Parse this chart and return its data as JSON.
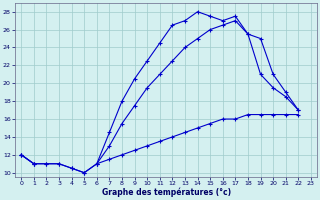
{
  "title": "Graphe des températures (°c)",
  "background_color": "#d4f0f0",
  "grid_color": "#a0cccc",
  "line_color": "#0000cc",
  "hours": [
    0,
    1,
    2,
    3,
    4,
    5,
    6,
    7,
    8,
    9,
    10,
    11,
    12,
    13,
    14,
    15,
    16,
    17,
    18,
    19,
    20,
    21,
    22,
    23
  ],
  "line1": [
    12,
    11,
    11,
    11,
    10.5,
    10,
    11,
    14.5,
    18,
    20.5,
    22.5,
    24.5,
    26.5,
    27,
    28,
    27.5,
    27,
    27.5,
    25.5,
    25,
    21,
    19,
    17,
    null
  ],
  "line2": [
    12,
    11,
    11,
    11,
    10.5,
    10,
    11,
    13,
    15.5,
    17.5,
    19.5,
    21,
    22.5,
    24,
    25,
    26,
    26.5,
    27,
    25.5,
    21,
    19.5,
    18.5,
    17,
    null
  ],
  "line3": [
    12,
    11,
    null,
    null,
    null,
    null,
    11,
    11.5,
    12,
    12.5,
    13,
    13.5,
    14,
    14.5,
    15,
    15.5,
    16,
    16,
    16.5,
    16.5,
    16.5,
    16.5,
    16.5,
    null
  ],
  "ylim": [
    9.5,
    29
  ],
  "xlim_min": -0.5,
  "xlim_max": 23.5,
  "yticks": [
    10,
    12,
    14,
    16,
    18,
    20,
    22,
    24,
    26,
    28
  ],
  "xticks": [
    0,
    1,
    2,
    3,
    4,
    5,
    6,
    7,
    8,
    9,
    10,
    11,
    12,
    13,
    14,
    15,
    16,
    17,
    18,
    19,
    20,
    21,
    22,
    23
  ]
}
